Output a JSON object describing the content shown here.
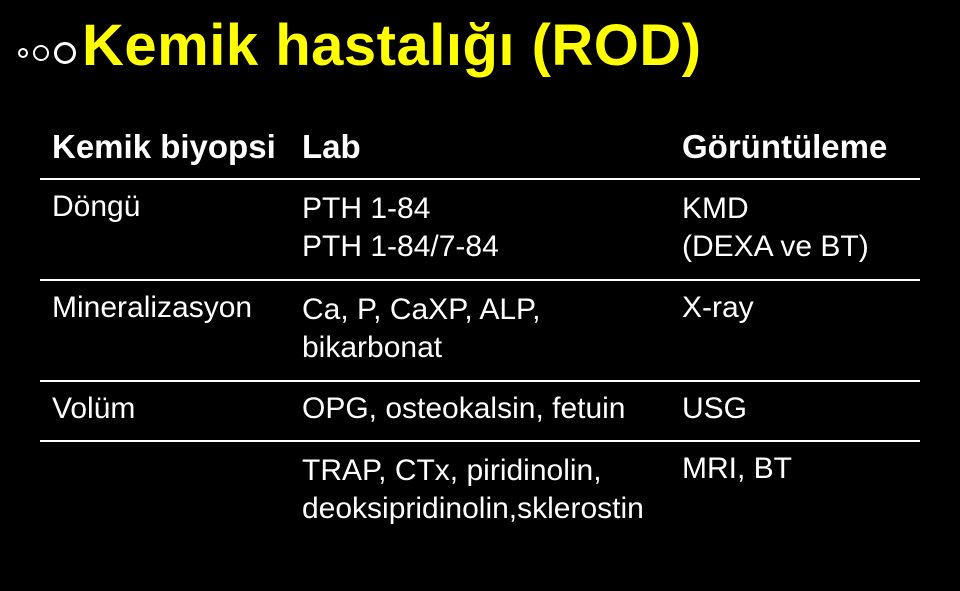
{
  "slide": {
    "background_color": "#000000",
    "title": "Kemik hastalığı (ROD)",
    "title_color": "#ffff00",
    "title_fontsize": 58,
    "text_color": "#ffffff",
    "body_fontsize": 30,
    "header_fontsize": 33,
    "border_color": "#ffffff"
  },
  "table": {
    "columns": [
      "Kemik biyopsi",
      "Lab",
      "Görüntüleme"
    ],
    "rows": [
      {
        "a": "Döngü",
        "b": "PTH 1-84\nPTH 1-84/7-84",
        "c": "KMD\n(DEXA ve BT)"
      },
      {
        "a": "Mineralizasyon",
        "b": "Ca, P, CaXP, ALP, bikarbonat",
        "c": "X-ray"
      },
      {
        "a": "Volüm",
        "b": "OPG, osteokalsin, fetuin",
        "c": "USG"
      },
      {
        "a": "",
        "b": "TRAP, CTx, piridinolin, deoksipridinolin,sklerostin",
        "c": "MRI, BT"
      }
    ]
  }
}
